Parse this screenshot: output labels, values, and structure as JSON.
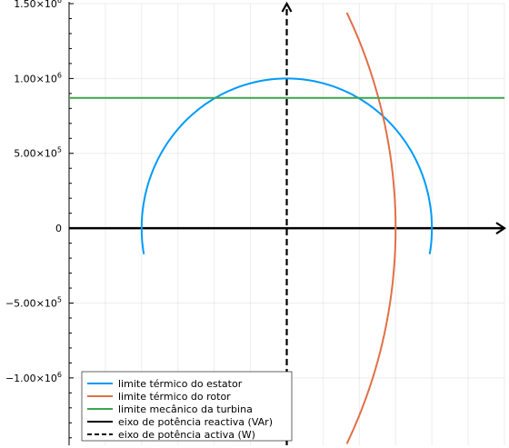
{
  "chart_data": {
    "type": "line",
    "title": "",
    "xlabel": "",
    "ylabel": "",
    "xlim": [
      -1500000,
      1500000
    ],
    "ylim": [
      -1450000,
      1500000
    ],
    "yticks": [
      {
        "value": 1500000,
        "mant": "1.50",
        "exp": "6"
      },
      {
        "value": 1000000,
        "mant": "1.00",
        "exp": "6"
      },
      {
        "value": 500000,
        "mant": "5.00",
        "exp": "5"
      },
      {
        "value": 0,
        "mant": "0",
        "exp": ""
      },
      {
        "value": -500000,
        "mant": "-5.00",
        "exp": "5"
      },
      {
        "value": -1000000,
        "mant": "-1.00",
        "exp": "6"
      }
    ],
    "grid": true,
    "legend_position": "bottom-left",
    "series": [
      {
        "name": "limite térmico do estator",
        "color": "#009AFA",
        "kind": "arc",
        "center": [
          0,
          0
        ],
        "radius": 1000000,
        "angle_range_deg": [
          -10,
          190
        ]
      },
      {
        "name": "limite térmico do rotor",
        "color": "#E26F46",
        "kind": "arc",
        "center": [
          -2500000,
          0
        ],
        "radius": 3250000,
        "y_range": [
          -1440000,
          1440000
        ]
      },
      {
        "name": "limite mecânico da turbina",
        "color": "#3EA44E",
        "kind": "hline",
        "y": 870000
      },
      {
        "name": "eixo de potência reactiva (VAr)",
        "color": "#000000",
        "kind": "axis-h",
        "y": 0
      },
      {
        "name": "eixo de potência activa (W)",
        "color": "#000000",
        "kind": "axis-v",
        "x": 0,
        "dashed": true
      }
    ]
  }
}
